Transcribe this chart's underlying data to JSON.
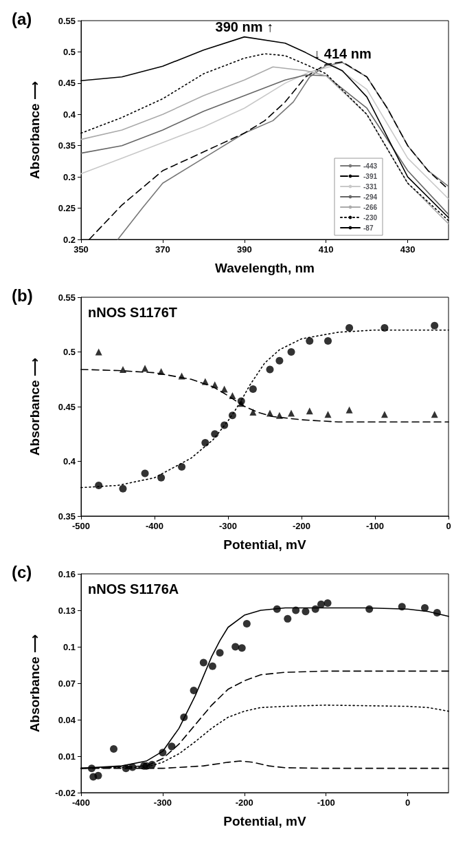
{
  "chart_data": [
    {
      "type": "line",
      "title": "(a)",
      "xlabel": "Wavelength, nm",
      "ylabel": "Absorbance ⟶",
      "xlim": [
        350,
        440
      ],
      "xticks": [
        350,
        370,
        390,
        410,
        430
      ],
      "ylim": [
        0.2,
        0.55
      ],
      "yticks": [
        0.2,
        0.25,
        0.3,
        0.35,
        0.4,
        0.45,
        0.5,
        0.55
      ],
      "grid": false,
      "legend": "bottom right",
      "marker": "none",
      "annotations": [
        {
          "text": "390 nm ↑",
          "x": 390,
          "y": 0.527
        },
        {
          "text": "↓ 414 nm",
          "x": 414,
          "y": 0.484
        }
      ],
      "series": [
        {
          "name": "-443",
          "color": "#777777",
          "line_style": "solid",
          "x": [
            359,
            365,
            370,
            380,
            390,
            397,
            402,
            406,
            410,
            414,
            420,
            425,
            430,
            435,
            440
          ],
          "values": [
            0.2,
            0.25,
            0.29,
            0.33,
            0.37,
            0.39,
            0.42,
            0.46,
            0.478,
            0.483,
            0.46,
            0.41,
            0.35,
            0.31,
            0.285
          ]
        },
        {
          "name": "-391",
          "color": "#000000",
          "line_style": "dashed",
          "x": [
            352,
            360,
            370,
            380,
            390,
            395,
            400,
            405,
            410,
            414,
            420,
            425,
            430,
            435,
            440
          ],
          "values": [
            0.2,
            0.255,
            0.31,
            0.34,
            0.37,
            0.39,
            0.42,
            0.46,
            0.48,
            0.484,
            0.46,
            0.41,
            0.35,
            0.31,
            0.28
          ]
        },
        {
          "name": "-331",
          "color": "#c8c8c8",
          "line_style": "solid",
          "x": [
            350,
            360,
            370,
            380,
            390,
            400,
            406,
            412,
            420,
            430,
            440
          ],
          "values": [
            0.305,
            0.33,
            0.355,
            0.38,
            0.41,
            0.45,
            0.468,
            0.478,
            0.44,
            0.33,
            0.265
          ]
        },
        {
          "name": "-294",
          "color": "#666666",
          "line_style": "solid",
          "x": [
            350,
            360,
            370,
            380,
            390,
            400,
            405,
            410,
            420,
            430,
            440
          ],
          "values": [
            0.338,
            0.35,
            0.375,
            0.405,
            0.43,
            0.455,
            0.463,
            0.462,
            0.41,
            0.31,
            0.24
          ]
        },
        {
          "name": "-266",
          "color": "#aaaaaa",
          "line_style": "solid",
          "x": [
            350,
            360,
            370,
            380,
            390,
            397,
            405,
            410,
            420,
            430,
            440
          ],
          "values": [
            0.36,
            0.375,
            0.4,
            0.43,
            0.455,
            0.476,
            0.47,
            0.462,
            0.4,
            0.29,
            0.225
          ]
        },
        {
          "name": "-230",
          "color": "#000000",
          "line_style": "dotted",
          "x": [
            350,
            360,
            370,
            380,
            390,
            395,
            400,
            405,
            410,
            420,
            430,
            440
          ],
          "values": [
            0.37,
            0.395,
            0.425,
            0.465,
            0.49,
            0.497,
            0.494,
            0.48,
            0.465,
            0.4,
            0.29,
            0.23
          ]
        },
        {
          "name": "-87",
          "color": "#000000",
          "line_style": "solid",
          "x": [
            350,
            360,
            370,
            380,
            390,
            400,
            405,
            410,
            414,
            420,
            430,
            440
          ],
          "values": [
            0.454,
            0.46,
            0.477,
            0.503,
            0.524,
            0.514,
            0.499,
            0.482,
            0.47,
            0.428,
            0.3,
            0.235
          ]
        }
      ]
    },
    {
      "type": "scatter",
      "title": "(b)",
      "xlabel": "Potential, mV",
      "ylabel": "Absorbance ⟶",
      "xlim": [
        -500,
        0
      ],
      "xticks": [
        -500,
        -400,
        -300,
        -200,
        -100,
        0
      ],
      "ylim": [
        0.35,
        0.55
      ],
      "yticks": [
        0.35,
        0.4,
        0.45,
        0.5,
        0.55
      ],
      "grid": false,
      "annotations": [
        "nNOS S1176T"
      ],
      "series": [
        {
          "marker": "circle",
          "color": "#000000",
          "x": [
            -476,
            -443,
            -413,
            -391,
            -363,
            -331,
            -318,
            -305,
            -294,
            -282,
            -266,
            -243,
            -230,
            -214,
            -189,
            -164,
            -135,
            -87,
            -19
          ],
          "values": [
            0.378,
            0.375,
            0.389,
            0.385,
            0.395,
            0.417,
            0.425,
            0.433,
            0.442,
            0.455,
            0.466,
            0.484,
            0.492,
            0.5,
            0.51,
            0.51,
            0.522,
            0.522,
            0.524
          ]
        },
        {
          "marker": "triangle",
          "color": "#000000",
          "x": [
            -476,
            -443,
            -413,
            -391,
            -363,
            -331,
            -318,
            -305,
            -294,
            -282,
            -266,
            -243,
            -230,
            -214,
            -189,
            -164,
            -135,
            -87,
            -19
          ],
          "values": [
            0.5,
            0.484,
            0.485,
            0.482,
            0.478,
            0.473,
            0.47,
            0.466,
            0.46,
            0.453,
            0.445,
            0.444,
            0.442,
            0.444,
            0.446,
            0.443,
            0.447,
            0.443,
            0.443
          ]
        },
        {
          "type": "line",
          "marker": "none",
          "line_style": "dotted",
          "color": "#000000",
          "x": [
            -500,
            -450,
            -400,
            -350,
            -320,
            -300,
            -290,
            -280,
            -270,
            -260,
            -250,
            -230,
            -200,
            -150,
            -100,
            0
          ],
          "values": [
            0.376,
            0.378,
            0.385,
            0.403,
            0.42,
            0.437,
            0.447,
            0.458,
            0.47,
            0.48,
            0.49,
            0.502,
            0.512,
            0.518,
            0.52,
            0.52
          ]
        },
        {
          "type": "line",
          "marker": "none",
          "line_style": "dashed",
          "color": "#000000",
          "x": [
            -500,
            -450,
            -400,
            -350,
            -320,
            -300,
            -280,
            -260,
            -240,
            -200,
            -150,
            -100,
            0
          ],
          "values": [
            0.484,
            0.483,
            0.481,
            0.475,
            0.468,
            0.46,
            0.451,
            0.445,
            0.441,
            0.438,
            0.436,
            0.436,
            0.436
          ]
        }
      ]
    },
    {
      "type": "scatter",
      "title": "(c)",
      "xlabel": "Potential, mV",
      "ylabel": "Absorbance ⟶",
      "xlim": [
        -400,
        50
      ],
      "xticks": [
        -400,
        -300,
        -200,
        -100,
        0
      ],
      "ylim": [
        -0.02,
        0.16
      ],
      "yticks": [
        -0.02,
        0.01,
        0.04,
        0.07,
        0.1,
        0.13,
        0.16
      ],
      "grid": false,
      "annotations": [
        "nNOS S1176A"
      ],
      "series": [
        {
          "marker": "circle",
          "color": "#000000",
          "x": [
            -387,
            -385,
            -379,
            -360,
            -345,
            -337,
            -323,
            -320,
            -313,
            -300,
            -289,
            -274,
            -262,
            -250,
            -239,
            -230,
            -211,
            -203,
            -197,
            -160,
            -147,
            -137,
            -125,
            -113,
            -106,
            -98,
            -47,
            -7,
            21,
            36
          ],
          "values": [
            0.0,
            -0.007,
            -0.006,
            0.016,
            0.0,
            0.001,
            0.002,
            0.002,
            0.003,
            0.013,
            0.018,
            0.042,
            0.064,
            0.087,
            0.084,
            0.095,
            0.1,
            0.099,
            0.119,
            0.131,
            0.123,
            0.13,
            0.129,
            0.131,
            0.135,
            0.136,
            0.131,
            0.133,
            0.132,
            0.128
          ]
        },
        {
          "type": "line",
          "marker": "none",
          "line_style": "solid",
          "color": "#000000",
          "x": [
            -400,
            -350,
            -320,
            -300,
            -280,
            -260,
            -250,
            -240,
            -230,
            -220,
            -200,
            -180,
            -150,
            -100,
            -50,
            0,
            25,
            50
          ],
          "values": [
            0.0,
            0.002,
            0.006,
            0.014,
            0.033,
            0.06,
            0.076,
            0.092,
            0.105,
            0.116,
            0.126,
            0.13,
            0.132,
            0.132,
            0.132,
            0.131,
            0.129,
            0.125
          ]
        },
        {
          "type": "line",
          "marker": "none",
          "line_style": "dashed",
          "color": "#000000",
          "x": [
            -400,
            -320,
            -300,
            -280,
            -260,
            -240,
            -220,
            -200,
            -180,
            -150,
            -100,
            0,
            50
          ],
          "values": [
            0.0,
            0.002,
            0.008,
            0.02,
            0.036,
            0.052,
            0.065,
            0.072,
            0.077,
            0.079,
            0.08,
            0.08,
            0.08
          ]
        },
        {
          "type": "line",
          "marker": "none",
          "line_style": "dotted",
          "color": "#000000",
          "x": [
            -400,
            -320,
            -300,
            -280,
            -260,
            -240,
            -220,
            -200,
            -180,
            -150,
            -100,
            0,
            25,
            50
          ],
          "values": [
            0.0,
            0.001,
            0.005,
            0.012,
            0.022,
            0.033,
            0.042,
            0.047,
            0.05,
            0.051,
            0.052,
            0.051,
            0.05,
            0.047
          ]
        },
        {
          "type": "line",
          "marker": "none",
          "line_style": "dashed",
          "color": "#000000",
          "x": [
            -400,
            -300,
            -250,
            -220,
            -205,
            -190,
            -170,
            -150,
            -100,
            0,
            50
          ],
          "values": [
            0.0,
            0.0,
            0.002,
            0.005,
            0.006,
            0.005,
            0.002,
            0.0005,
            0.0,
            0.0,
            0.0
          ]
        }
      ]
    }
  ]
}
